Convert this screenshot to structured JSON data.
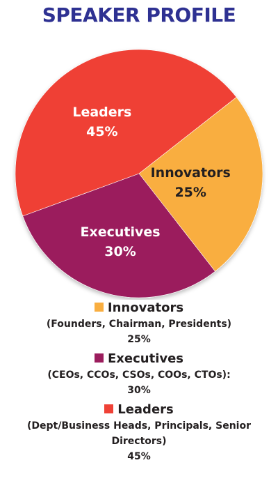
{
  "chart_data": {
    "type": "pie",
    "title": "SPEAKER PROFILE",
    "slices": [
      {
        "name": "Innovators",
        "value": 25,
        "label": "25%",
        "detail": "(Founders, Chairman, Presidents)",
        "legend_value": "25%",
        "color": "#f9ae40"
      },
      {
        "name": "Executives",
        "value": 30,
        "label": "30%",
        "detail": "(CEOs, CCOs, CSOs, COOs, CTOs):",
        "legend_value": "30%",
        "color": "#9b1d5d"
      },
      {
        "name": "Leaders",
        "value": 45,
        "label": "45%",
        "detail": "(Dept/Business Heads, Principals, Senior Directors)",
        "legend_value": "45%",
        "color": "#ef4136"
      }
    ]
  },
  "colors": {
    "title": "#2e3192",
    "innovators_text": "#231f20",
    "slice_text_light": "#ffffff"
  }
}
